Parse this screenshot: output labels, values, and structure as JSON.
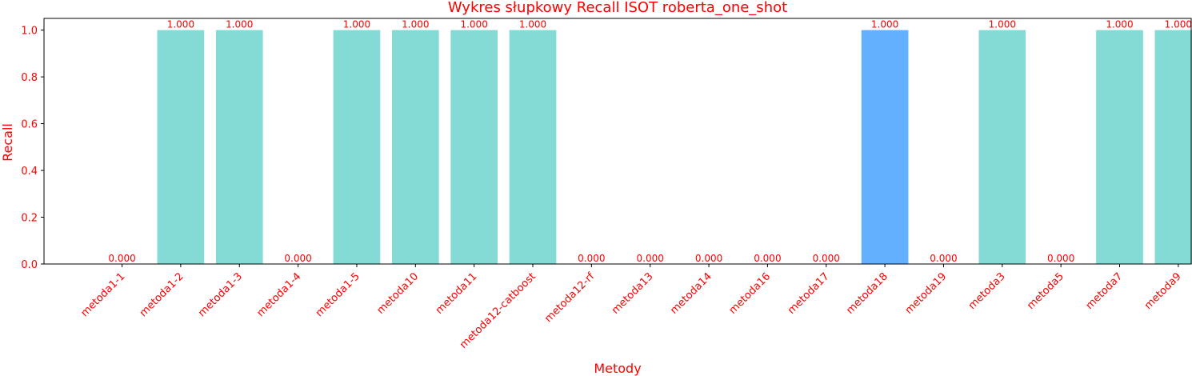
{
  "chart_data": {
    "type": "bar",
    "title": "Wykres słupkowy Recall ISOT roberta_one_shot",
    "xlabel": "Metody",
    "ylabel": "Recall",
    "categories": [
      "metoda1-1",
      "metoda1-2",
      "metoda1-3",
      "metoda1-4",
      "metoda1-5",
      "metoda10",
      "metoda11",
      "metoda12-catboost",
      "metoda12-rf",
      "metoda13",
      "metoda14",
      "metoda16",
      "metoda17",
      "metoda18",
      "metoda19",
      "metoda3",
      "metoda5",
      "metoda7",
      "metoda9"
    ],
    "values": [
      0.0,
      1.0,
      1.0,
      0.0,
      1.0,
      1.0,
      1.0,
      1.0,
      0.0,
      0.0,
      0.0,
      0.0,
      0.0,
      1.0,
      0.0,
      1.0,
      0.0,
      1.0,
      1.0
    ],
    "value_labels": [
      "0.000",
      "1.000",
      "1.000",
      "0.000",
      "1.000",
      "1.000",
      "1.000",
      "1.000",
      "0.000",
      "0.000",
      "0.000",
      "0.000",
      "0.000",
      "1.000",
      "0.000",
      "1.000",
      "0.000",
      "1.000",
      "1.000"
    ],
    "highlight_category": "metoda18",
    "ylim": [
      0,
      1.05
    ],
    "yticks": [
      0.0,
      0.2,
      0.4,
      0.6,
      0.8,
      1.0
    ],
    "ytick_labels": [
      "0.0",
      "0.2",
      "0.4",
      "0.6",
      "0.8",
      "1.0"
    ],
    "grid": false,
    "colors": {
      "bar": "#84dbd5",
      "highlight": "#62b0ff",
      "text": "#ff0000",
      "axis": "#000000"
    }
  }
}
